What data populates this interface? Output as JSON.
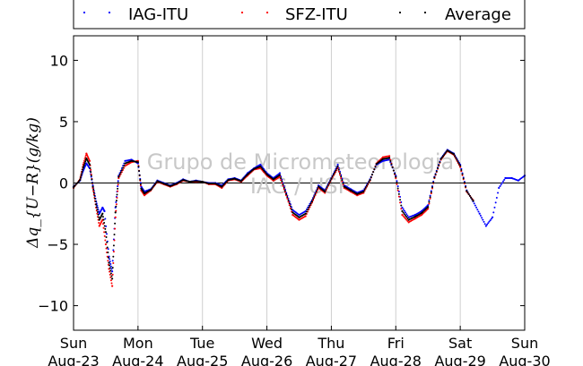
{
  "chart_data": {
    "type": "scatter",
    "ylabel": "Δq_{U−R}(g/kg)",
    "ylim": [
      -12,
      12
    ],
    "yticks": [
      -10,
      -5,
      0,
      5,
      10
    ],
    "yticks_labels": [
      "−10",
      "−5",
      "0",
      "5",
      "10"
    ],
    "xlim": [
      0,
      7
    ],
    "x_units": "days since Sun Aug-23 00:00",
    "xticks": [
      {
        "day": "Sun",
        "date": "Aug-23"
      },
      {
        "day": "Mon",
        "date": "Aug-24"
      },
      {
        "day": "Tue",
        "date": "Aug-25"
      },
      {
        "day": "Wed",
        "date": "Aug-26"
      },
      {
        "day": "Thu",
        "date": "Aug-27"
      },
      {
        "day": "Fri",
        "date": "Aug-28"
      },
      {
        "day": "Sat",
        "date": "Aug-29"
      },
      {
        "day": "Sun",
        "date": "Aug-30"
      }
    ],
    "grid": "vertical",
    "legend_position": "top",
    "watermark": [
      "Grupo de Micrometeorologia",
      "IAG / USP"
    ],
    "series": [
      {
        "name": "IAG-ITU",
        "color": "#0000ff",
        "x": [
          0.0,
          0.1,
          0.15,
          0.2,
          0.25,
          0.3,
          0.35,
          0.4,
          0.45,
          0.48,
          0.55,
          0.6,
          0.65,
          0.7,
          0.8,
          0.9,
          1.0,
          1.05,
          1.1,
          1.2,
          1.3,
          1.4,
          1.5,
          1.6,
          1.7,
          1.8,
          1.9,
          2.0,
          2.1,
          2.2,
          2.3,
          2.4,
          2.5,
          2.6,
          2.7,
          2.8,
          2.9,
          3.0,
          3.1,
          3.2,
          3.3,
          3.4,
          3.5,
          3.6,
          3.7,
          3.8,
          3.9,
          4.0,
          4.1,
          4.2,
          4.3,
          4.4,
          4.5,
          4.6,
          4.7,
          4.8,
          4.9,
          5.0,
          5.1,
          5.2,
          5.3,
          5.4,
          5.5,
          5.6,
          5.7,
          5.8,
          5.9,
          6.0,
          6.1,
          6.2,
          6.3,
          6.4,
          6.5,
          6.6,
          6.7,
          6.8,
          6.9,
          7.0
        ],
        "y": [
          -0.3,
          0.2,
          1.0,
          1.6,
          1.2,
          -0.2,
          -1.5,
          -2.5,
          -2.0,
          -2.3,
          -6.0,
          -7.2,
          -2.0,
          0.6,
          1.8,
          1.9,
          1.6,
          -0.3,
          -0.7,
          -0.5,
          0.2,
          0.0,
          -0.2,
          0.0,
          0.3,
          0.1,
          0.2,
          0.1,
          0.0,
          0.0,
          -0.2,
          0.3,
          0.4,
          0.2,
          0.8,
          1.2,
          1.5,
          0.8,
          0.4,
          0.8,
          -0.8,
          -2.2,
          -2.6,
          -2.3,
          -1.4,
          -0.2,
          -0.6,
          0.4,
          1.5,
          -0.2,
          -0.5,
          -0.8,
          -0.6,
          0.3,
          1.5,
          1.8,
          1.9,
          0.6,
          -2.0,
          -2.8,
          -2.6,
          -2.3,
          -1.8,
          0.5,
          2.0,
          2.7,
          2.4,
          1.5,
          -0.6,
          -1.5,
          -2.5,
          -3.5,
          -2.8,
          -0.4,
          0.4,
          0.4,
          0.2,
          0.6
        ]
      },
      {
        "name": "SFZ-ITU",
        "color": "#ff0000",
        "x": [
          0.0,
          0.1,
          0.15,
          0.2,
          0.25,
          0.3,
          0.35,
          0.4,
          0.45,
          0.5,
          0.55,
          0.6,
          0.65,
          0.7,
          0.8,
          0.9,
          1.0,
          1.05,
          1.1,
          1.2,
          1.3,
          1.4,
          1.5,
          1.6,
          1.7,
          1.8,
          1.9,
          2.0,
          2.1,
          2.2,
          2.3,
          2.4,
          2.5,
          2.6,
          2.7,
          2.8,
          2.9,
          3.0,
          3.1,
          3.2,
          3.3,
          3.4,
          3.5,
          3.6,
          3.7,
          3.8,
          3.9,
          4.0,
          4.1,
          4.2,
          4.3,
          4.4,
          4.5,
          4.6,
          4.7,
          4.8,
          4.9,
          5.0,
          5.1,
          5.2,
          5.3,
          5.4,
          5.5,
          5.6,
          5.7,
          5.8,
          5.9,
          6.0,
          6.1,
          6.2
        ],
        "y": [
          -0.4,
          0.3,
          1.5,
          2.4,
          1.8,
          -0.4,
          -2.0,
          -3.5,
          -3.0,
          -5.0,
          -7.0,
          -8.4,
          -2.8,
          0.4,
          1.4,
          1.7,
          1.8,
          -0.6,
          -1.0,
          -0.6,
          0.1,
          -0.1,
          -0.3,
          -0.1,
          0.2,
          0.1,
          0.1,
          0.1,
          -0.1,
          -0.1,
          -0.4,
          0.2,
          0.3,
          0.1,
          0.6,
          1.1,
          1.2,
          0.6,
          0.2,
          0.5,
          -1.0,
          -2.6,
          -3.0,
          -2.7,
          -1.6,
          -0.4,
          -0.8,
          0.3,
          1.2,
          -0.4,
          -0.7,
          -1.0,
          -0.8,
          0.2,
          1.6,
          2.1,
          2.2,
          0.4,
          -2.6,
          -3.2,
          -2.9,
          -2.6,
          -2.1,
          0.4,
          1.9,
          2.6,
          2.3,
          1.3,
          -0.7,
          -1.4
        ]
      },
      {
        "name": "Average",
        "color": "#000000",
        "x": [
          0.0,
          0.1,
          0.15,
          0.2,
          0.25,
          0.3,
          0.35,
          0.4,
          0.45,
          0.5,
          0.55,
          0.6,
          0.65,
          0.7,
          0.8,
          0.9,
          1.0,
          1.05,
          1.1,
          1.2,
          1.3,
          1.4,
          1.5,
          1.6,
          1.7,
          1.8,
          1.9,
          2.0,
          2.1,
          2.2,
          2.3,
          2.4,
          2.5,
          2.6,
          2.7,
          2.8,
          2.9,
          3.0,
          3.1,
          3.2,
          3.3,
          3.4,
          3.5,
          3.6,
          3.7,
          3.8,
          3.9,
          4.0,
          4.1,
          4.2,
          4.3,
          4.4,
          4.5,
          4.6,
          4.7,
          4.8,
          4.9,
          5.0,
          5.1,
          5.2,
          5.3,
          5.4,
          5.5,
          5.6,
          5.7,
          5.8,
          5.9,
          6.0,
          6.1,
          6.2
        ],
        "y": [
          -0.35,
          0.25,
          1.25,
          2.0,
          1.5,
          -0.3,
          -1.75,
          -3.0,
          -2.5,
          -4.0,
          -6.5,
          -7.8,
          -2.4,
          0.5,
          1.6,
          1.8,
          1.7,
          -0.45,
          -0.85,
          -0.55,
          0.15,
          -0.05,
          -0.25,
          -0.05,
          0.25,
          0.1,
          0.15,
          0.1,
          -0.05,
          -0.05,
          -0.3,
          0.25,
          0.35,
          0.15,
          0.7,
          1.15,
          1.35,
          0.7,
          0.3,
          0.65,
          -0.9,
          -2.4,
          -2.8,
          -2.5,
          -1.5,
          -0.3,
          -0.7,
          0.35,
          1.35,
          -0.3,
          -0.6,
          -0.9,
          -0.7,
          0.25,
          1.55,
          1.95,
          2.05,
          0.5,
          -2.3,
          -3.0,
          -2.75,
          -2.45,
          -1.95,
          0.45,
          1.95,
          2.65,
          2.35,
          1.4,
          -0.65,
          -1.45
        ]
      }
    ]
  }
}
